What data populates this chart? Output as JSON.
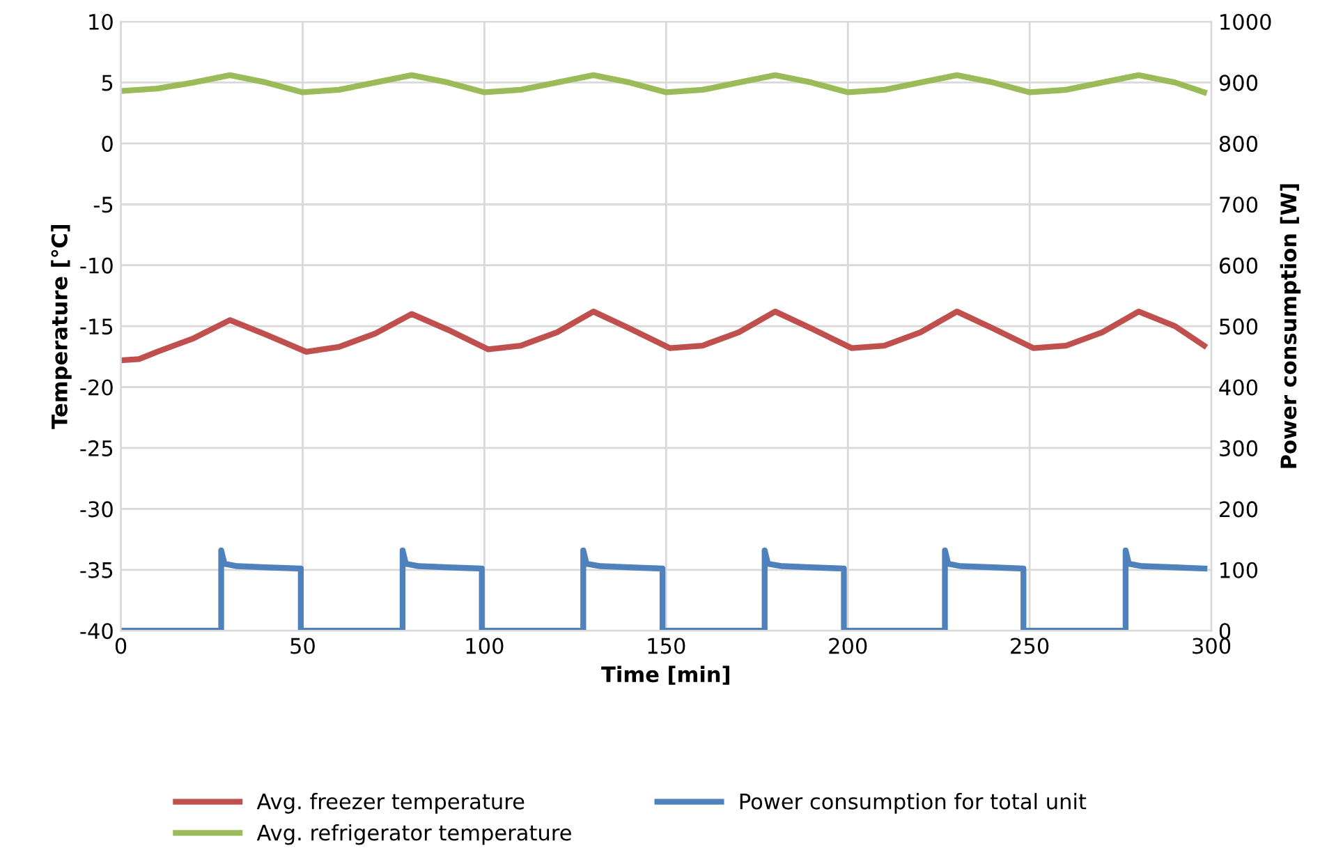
{
  "chart_data": {
    "type": "line",
    "xlabel": "Time [min]",
    "ylabel": "Temperature [℃]",
    "y2label": "Power consumption [W]",
    "xlim": [
      0,
      300
    ],
    "xticks": [
      0,
      50,
      100,
      150,
      200,
      250,
      300
    ],
    "ylim": [
      -40,
      10
    ],
    "yticks": [
      -40,
      -35,
      -30,
      -25,
      -20,
      -15,
      -10,
      -5,
      0,
      5,
      10
    ],
    "y2lim": [
      0,
      1000
    ],
    "y2ticks": [
      0,
      100,
      200,
      300,
      400,
      500,
      600,
      700,
      800,
      900,
      1000
    ],
    "grid": true,
    "legend": "bottom",
    "marker": "none",
    "line_style": "solid",
    "series": [
      {
        "name": "Avg. freezer temperature",
        "color": "#c0504d",
        "x": [
          0,
          5,
          10,
          20,
          30,
          40,
          51,
          60,
          70,
          80,
          90,
          101,
          110,
          120,
          130,
          140,
          151,
          160,
          170,
          180,
          190,
          201,
          210,
          220,
          230,
          240,
          251,
          260,
          270,
          280,
          290,
          298
        ],
        "values": [
          -17.8,
          -17.7,
          -17.1,
          -16.0,
          -14.5,
          -15.7,
          -17.1,
          -16.7,
          -15.6,
          -14.0,
          -15.3,
          -16.9,
          -16.6,
          -15.5,
          -13.8,
          -15.2,
          -16.8,
          -16.6,
          -15.5,
          -13.8,
          -15.2,
          -16.8,
          -16.6,
          -15.5,
          -13.8,
          -15.2,
          -16.8,
          -16.6,
          -15.5,
          -13.8,
          -15.0,
          -16.6
        ]
      },
      {
        "name": "Avg. refrigerator temperature",
        "color": "#9bbb59",
        "x": [
          0,
          10,
          20,
          30,
          40,
          50,
          60,
          70,
          80,
          90,
          100,
          110,
          120,
          130,
          140,
          150,
          160,
          170,
          180,
          190,
          200,
          210,
          220,
          230,
          240,
          250,
          260,
          270,
          280,
          290,
          298
        ],
        "values": [
          4.3,
          4.5,
          5.0,
          5.6,
          5.0,
          4.2,
          4.4,
          5.0,
          5.6,
          5.0,
          4.2,
          4.4,
          5.0,
          5.6,
          5.0,
          4.2,
          4.4,
          5.0,
          5.6,
          5.0,
          4.2,
          4.4,
          5.0,
          5.6,
          5.0,
          4.2,
          4.4,
          5.0,
          5.6,
          5.0,
          4.2
        ]
      },
      {
        "name": "Power consumption for total unit",
        "color": "#4f81bd",
        "axis": "y2",
        "x": [
          0,
          27.6,
          27.6,
          28.5,
          32,
          40,
          49.5,
          49.5,
          77.5,
          77.5,
          78.4,
          82,
          90,
          99.3,
          99.3,
          127.2,
          127.2,
          128.1,
          132,
          140,
          149.0,
          149.0,
          177.1,
          177.1,
          178,
          182,
          190,
          198.9,
          198.9,
          226.7,
          226.7,
          227.6,
          231,
          240,
          248.3,
          248.3,
          276.4,
          276.4,
          277.3,
          281,
          290,
          298.1
        ],
        "values": [
          0,
          0,
          132,
          110,
          106,
          104,
          102,
          0,
          0,
          132,
          110,
          106,
          104,
          102,
          0,
          0,
          132,
          110,
          106,
          104,
          102,
          0,
          0,
          132,
          110,
          106,
          104,
          102,
          0,
          0,
          132,
          110,
          106,
          104,
          102,
          0,
          0,
          132,
          110,
          106,
          104,
          102
        ]
      }
    ]
  }
}
